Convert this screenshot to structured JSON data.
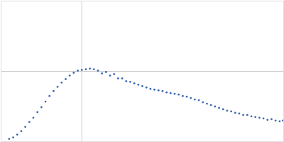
{
  "chart_data": {
    "type": "scatter",
    "x": [
      0.1,
      0.15,
      0.2,
      0.25,
      0.3,
      0.35,
      0.4,
      0.45,
      0.5,
      0.55,
      0.6,
      0.65,
      0.7,
      0.75,
      0.8,
      0.85,
      0.9,
      0.95,
      1.0,
      1.05,
      1.1,
      1.15,
      1.2,
      1.25,
      1.3,
      1.35,
      1.4,
      1.45,
      1.5,
      1.55,
      1.6,
      1.65,
      1.7,
      1.75,
      1.8,
      1.85,
      1.9,
      1.95,
      2.0,
      2.05,
      2.1,
      2.15,
      2.2,
      2.25,
      2.3,
      2.35,
      2.4,
      2.45,
      2.5,
      2.55,
      2.6,
      2.65,
      2.7,
      2.75,
      2.8,
      2.85,
      2.9,
      2.95,
      3.0,
      3.05,
      3.1,
      3.15,
      3.2,
      3.25,
      3.3,
      3.35,
      3.4,
      3.45,
      3.49
    ],
    "values": [
      0.04,
      0.06,
      0.1,
      0.15,
      0.21,
      0.28,
      0.34,
      0.42,
      0.49,
      0.57,
      0.65,
      0.72,
      0.78,
      0.84,
      0.89,
      0.94,
      0.98,
      1.01,
      1.02,
      1.03,
      1.04,
      1.03,
      1.01,
      0.97,
      0.99,
      0.94,
      0.96,
      0.9,
      0.9,
      0.86,
      0.85,
      0.83,
      0.81,
      0.79,
      0.77,
      0.75,
      0.74,
      0.73,
      0.72,
      0.7,
      0.69,
      0.68,
      0.67,
      0.65,
      0.64,
      0.62,
      0.6,
      0.59,
      0.56,
      0.54,
      0.52,
      0.5,
      0.48,
      0.46,
      0.44,
      0.43,
      0.41,
      0.4,
      0.38,
      0.38,
      0.36,
      0.35,
      0.34,
      0.33,
      0.31,
      0.32,
      0.3,
      0.29,
      0.3
    ],
    "color": "#3b67b5",
    "marker": "circle",
    "xlim": [
      0,
      3.5
    ],
    "xticks": [
      1
    ],
    "ylim": [
      0,
      2
    ],
    "yticks": [
      1
    ],
    "grid": true,
    "tick_labels": false
  }
}
